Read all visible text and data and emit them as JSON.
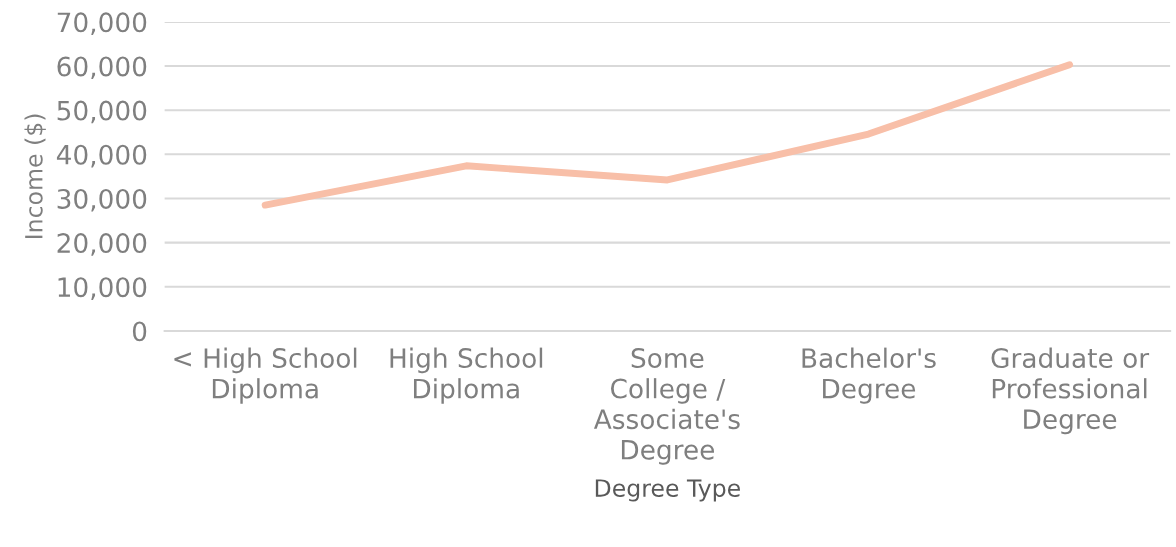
{
  "chart_data": {
    "type": "line",
    "xlabel": "Degree Type",
    "ylabel": "Income ($)",
    "categories": [
      "< High School\nDiploma",
      "High School\nDiploma",
      "Some\nCollege /\nAssociate's\nDegree",
      "Bachelor's\nDegree",
      "Graduate or\nProfessional\nDegree"
    ],
    "series": [
      {
        "color": "#f8bfa8",
        "values": [
          28500,
          37400,
          34200,
          44600,
          60300
        ]
      }
    ],
    "ylim": [
      0,
      70000
    ],
    "yticks": [
      {
        "value": 0,
        "label": "0"
      },
      {
        "value": 10000,
        "label": "10,000"
      },
      {
        "value": 20000,
        "label": "20,000"
      },
      {
        "value": 30000,
        "label": "30,000"
      },
      {
        "value": 40000,
        "label": "40,000"
      },
      {
        "value": 50000,
        "label": "50,000"
      },
      {
        "value": 60000,
        "label": "60,000"
      },
      {
        "value": 70000,
        "label": "70,000"
      }
    ],
    "grid": "y",
    "legend": false,
    "marker": "none",
    "line_style": "solid"
  }
}
